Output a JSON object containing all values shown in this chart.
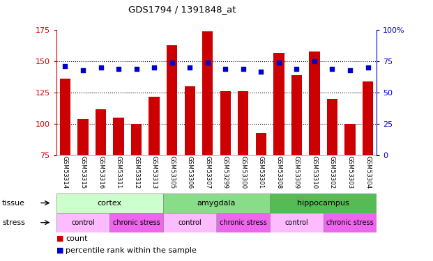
{
  "title": "GDS1794 / 1391848_at",
  "samples": [
    "GSM53314",
    "GSM53315",
    "GSM53316",
    "GSM53311",
    "GSM53312",
    "GSM53313",
    "GSM53305",
    "GSM53306",
    "GSM53307",
    "GSM53299",
    "GSM53300",
    "GSM53301",
    "GSM53308",
    "GSM53309",
    "GSM53310",
    "GSM53302",
    "GSM53303",
    "GSM53304"
  ],
  "counts": [
    136,
    104,
    112,
    105,
    100,
    122,
    163,
    130,
    174,
    126,
    126,
    93,
    157,
    139,
    158,
    120,
    100,
    134
  ],
  "percentiles": [
    71,
    68,
    70,
    69,
    69,
    70,
    74,
    70,
    74,
    69,
    69,
    67,
    74,
    69,
    75,
    69,
    68,
    70
  ],
  "ylim_left": [
    75,
    175
  ],
  "ylim_right": [
    0,
    100
  ],
  "yticks_left": [
    75,
    100,
    125,
    150,
    175
  ],
  "yticks_right": [
    0,
    25,
    50,
    75,
    100
  ],
  "bar_color": "#cc0000",
  "dot_color": "#0000cc",
  "tissue_groups": [
    {
      "label": "cortex",
      "start": 0,
      "end": 6,
      "color": "#ccffcc"
    },
    {
      "label": "amygdala",
      "start": 6,
      "end": 12,
      "color": "#88dd88"
    },
    {
      "label": "hippocampus",
      "start": 12,
      "end": 18,
      "color": "#55bb55"
    }
  ],
  "stress_groups": [
    {
      "label": "control",
      "start": 0,
      "end": 3,
      "color": "#ffbbff"
    },
    {
      "label": "chronic stress",
      "start": 3,
      "end": 6,
      "color": "#ee66ee"
    },
    {
      "label": "control",
      "start": 6,
      "end": 9,
      "color": "#ffbbff"
    },
    {
      "label": "chronic stress",
      "start": 9,
      "end": 12,
      "color": "#ee66ee"
    },
    {
      "label": "control",
      "start": 12,
      "end": 15,
      "color": "#ffbbff"
    },
    {
      "label": "chronic stress",
      "start": 15,
      "end": 18,
      "color": "#ee66ee"
    }
  ],
  "bg_color": "#ffffff",
  "left_axis_color": "#cc0000",
  "right_axis_color": "#0000cc"
}
